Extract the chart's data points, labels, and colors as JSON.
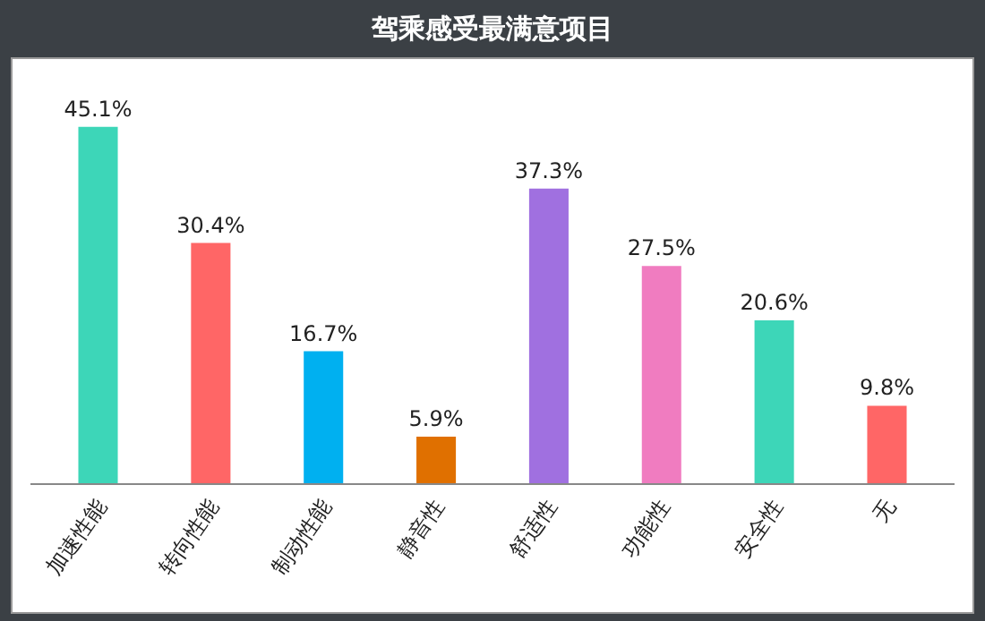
{
  "chart_data": {
    "type": "bar",
    "title": "驾乘感受最满意项目",
    "categories": [
      "加速性能",
      "转向性能",
      "制动性能",
      "静音性",
      "舒适性",
      "功能性",
      "安全性",
      "无"
    ],
    "values": [
      45.1,
      30.4,
      16.7,
      5.9,
      37.3,
      27.5,
      20.6,
      9.8
    ],
    "colors": [
      "#3dd6b8",
      "#ff6666",
      "#00b0f0",
      "#e07000",
      "#a070e0",
      "#f07cc0",
      "#3dd6b8",
      "#ff6666"
    ],
    "value_labels": [
      "45.1%",
      "30.4%",
      "16.7%",
      "5.9%",
      "37.3%",
      "27.5%",
      "20.6%",
      "9.8%"
    ]
  }
}
